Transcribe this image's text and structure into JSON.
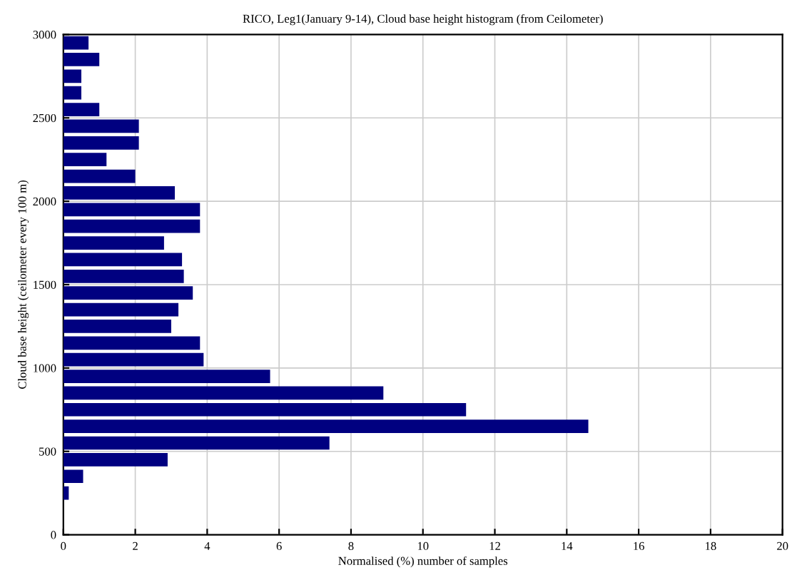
{
  "chart_data": {
    "type": "histogram",
    "orientation": "horizontal",
    "title": "RICO, Leg1(January 9-14), Cloud base height histogram (from Ceilometer)",
    "xlabel": "Normalised (%) number of samples",
    "ylabel": "Cloud base height (ceilometer every 100 m)",
    "bins": [
      0,
      100,
      200,
      300,
      400,
      500,
      600,
      700,
      800,
      900,
      1000,
      1100,
      1200,
      1300,
      1400,
      1500,
      1600,
      1700,
      1800,
      1900,
      2000,
      2100,
      2200,
      2300,
      2400,
      2500,
      2600,
      2700,
      2800,
      2900,
      3000
    ],
    "values": [
      0,
      0,
      0.15,
      0.55,
      2.9,
      7.4,
      14.6,
      11.2,
      8.9,
      5.75,
      3.9,
      3.8,
      3.0,
      3.2,
      3.6,
      3.35,
      3.3,
      2.8,
      3.8,
      3.8,
      3.1,
      2.0,
      1.2,
      2.1,
      2.1,
      1.0,
      0.5,
      0.5,
      1.0,
      0.7
    ],
    "color": "#000080",
    "xlim": [
      0,
      20
    ],
    "xticks": [
      0,
      2,
      4,
      6,
      8,
      10,
      12,
      14,
      16,
      18,
      20
    ],
    "ylim": [
      0,
      3000
    ],
    "yticks": [
      0,
      500,
      1000,
      1500,
      2000,
      2500,
      3000
    ],
    "grid": true
  }
}
